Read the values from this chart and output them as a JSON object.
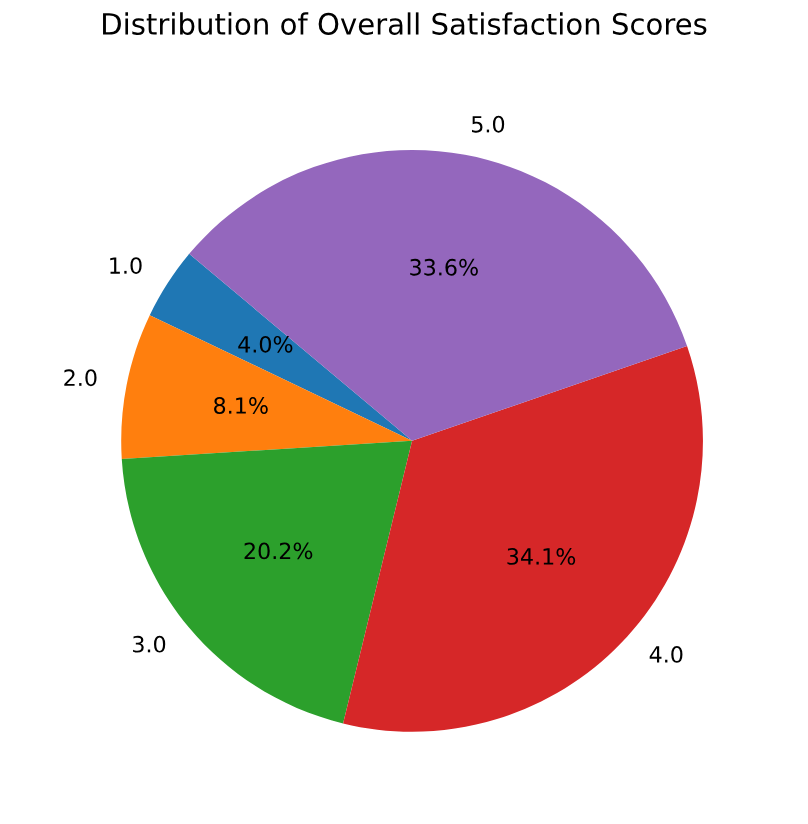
{
  "chart_data": {
    "type": "pie",
    "title": "Distribution of Overall Satisfaction Scores",
    "categories": [
      "1.0",
      "2.0",
      "3.0",
      "4.0",
      "5.0"
    ],
    "values": [
      4.0,
      8.1,
      20.2,
      34.1,
      33.6
    ],
    "colors": [
      "#1f77b4",
      "#ff7f0e",
      "#2ca02c",
      "#d62728",
      "#9467bd"
    ],
    "value_labels": [
      "4.0%",
      "8.1%",
      "20.2%",
      "34.1%",
      "33.6%"
    ],
    "legend": false
  }
}
